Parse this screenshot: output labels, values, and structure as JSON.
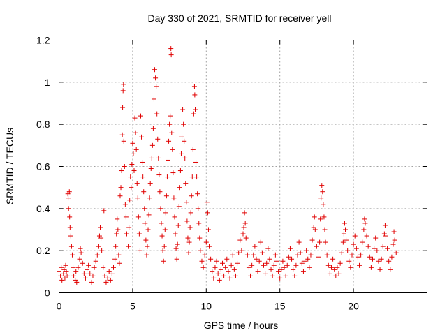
{
  "chart_data": {
    "type": "scatter",
    "title": "Day 330 of 2021, SRMTID for receiver yell",
    "xlabel": "GPS time / hours",
    "ylabel": "SRMTID / TECUs",
    "xlim": [
      0,
      25
    ],
    "ylim": [
      0,
      1.2
    ],
    "xticks": [
      0,
      5,
      10,
      15,
      20
    ],
    "xtick_labels": [
      "0",
      "5",
      "10",
      "15",
      "20"
    ],
    "yticks": [
      0,
      0.2,
      0.4,
      0.6,
      0.8,
      1.0,
      1.2
    ],
    "ytick_labels": [
      "0",
      "0.2",
      "0.4",
      "0.6",
      "0.8",
      "1",
      "1.2"
    ],
    "grid": true,
    "marker": "+",
    "color": "#e00000",
    "series": [
      {
        "name": "SRMTID",
        "points": [
          [
            0.0,
            0.1
          ],
          [
            0.1,
            0.08
          ],
          [
            0.15,
            0.12
          ],
          [
            0.2,
            0.06
          ],
          [
            0.3,
            0.09
          ],
          [
            0.35,
            0.11
          ],
          [
            0.4,
            0.07
          ],
          [
            0.45,
            0.13
          ],
          [
            0.5,
            0.1
          ],
          [
            0.55,
            0.08
          ],
          [
            0.6,
            0.47
          ],
          [
            0.62,
            0.45
          ],
          [
            0.65,
            0.4
          ],
          [
            0.7,
            0.48
          ],
          [
            0.72,
            0.36
          ],
          [
            0.75,
            0.31
          ],
          [
            0.8,
            0.27
          ],
          [
            0.85,
            0.22
          ],
          [
            0.9,
            0.18
          ],
          [
            0.95,
            0.12
          ],
          [
            1.0,
            0.08
          ],
          [
            1.1,
            0.06
          ],
          [
            1.15,
            0.1
          ],
          [
            1.2,
            0.05
          ],
          [
            1.3,
            0.12
          ],
          [
            1.4,
            0.16
          ],
          [
            1.45,
            0.21
          ],
          [
            1.5,
            0.19
          ],
          [
            1.6,
            0.14
          ],
          [
            1.7,
            0.09
          ],
          [
            1.8,
            0.07
          ],
          [
            1.9,
            0.11
          ],
          [
            2.0,
            0.13
          ],
          [
            2.1,
            0.09
          ],
          [
            2.2,
            0.05
          ],
          [
            2.3,
            0.08
          ],
          [
            2.4,
            0.12
          ],
          [
            2.5,
            0.15
          ],
          [
            2.6,
            0.18
          ],
          [
            2.7,
            0.22
          ],
          [
            2.75,
            0.27
          ],
          [
            2.8,
            0.31
          ],
          [
            2.85,
            0.26
          ],
          [
            2.9,
            0.2
          ],
          [
            3.0,
            0.12
          ],
          [
            3.05,
            0.39
          ],
          [
            3.1,
            0.08
          ],
          [
            3.2,
            0.05
          ],
          [
            3.3,
            0.07
          ],
          [
            3.4,
            0.1
          ],
          [
            3.5,
            0.06
          ],
          [
            3.6,
            0.09
          ],
          [
            3.7,
            0.12
          ],
          [
            3.8,
            0.16
          ],
          [
            3.85,
            0.22
          ],
          [
            3.9,
            0.28
          ],
          [
            3.95,
            0.35
          ],
          [
            4.0,
            0.3
          ],
          [
            4.05,
            0.18
          ],
          [
            4.1,
            0.14
          ],
          [
            4.15,
            0.46
          ],
          [
            4.2,
            0.5
          ],
          [
            4.25,
            0.58
          ],
          [
            4.3,
            0.75
          ],
          [
            4.32,
            0.88
          ],
          [
            4.35,
            0.96
          ],
          [
            4.38,
            0.99
          ],
          [
            4.4,
            0.72
          ],
          [
            4.45,
            0.6
          ],
          [
            4.5,
            0.42
          ],
          [
            4.55,
            0.36
          ],
          [
            4.6,
            0.28
          ],
          [
            4.7,
            0.22
          ],
          [
            4.75,
            0.31
          ],
          [
            4.8,
            0.44
          ],
          [
            4.85,
            0.55
          ],
          [
            4.9,
            0.5
          ],
          [
            4.95,
            0.61
          ],
          [
            5.0,
            0.71
          ],
          [
            5.05,
            0.66
          ],
          [
            5.1,
            0.58
          ],
          [
            5.15,
            0.83
          ],
          [
            5.2,
            0.76
          ],
          [
            5.25,
            0.68
          ],
          [
            5.3,
            0.52
          ],
          [
            5.35,
            0.45
          ],
          [
            5.4,
            0.36
          ],
          [
            5.45,
            0.28
          ],
          [
            5.5,
            0.2
          ],
          [
            5.55,
            0.84
          ],
          [
            5.6,
            0.74
          ],
          [
            5.65,
            0.62
          ],
          [
            5.7,
            0.55
          ],
          [
            5.75,
            0.48
          ],
          [
            5.8,
            0.4
          ],
          [
            5.85,
            0.33
          ],
          [
            5.9,
            0.25
          ],
          [
            5.95,
            0.18
          ],
          [
            6.0,
            0.22
          ],
          [
            6.05,
            0.3
          ],
          [
            6.1,
            0.37
          ],
          [
            6.15,
            0.45
          ],
          [
            6.2,
            0.52
          ],
          [
            6.25,
            0.59
          ],
          [
            6.3,
            0.64
          ],
          [
            6.35,
            0.7
          ],
          [
            6.4,
            0.78
          ],
          [
            6.45,
            0.92
          ],
          [
            6.5,
            1.06
          ],
          [
            6.55,
            1.02
          ],
          [
            6.6,
            0.98
          ],
          [
            6.65,
            0.85
          ],
          [
            6.7,
            0.73
          ],
          [
            6.75,
            0.64
          ],
          [
            6.8,
            0.56
          ],
          [
            6.85,
            0.48
          ],
          [
            6.9,
            0.4
          ],
          [
            6.95,
            0.33
          ],
          [
            7.0,
            0.27
          ],
          [
            7.05,
            0.2
          ],
          [
            7.1,
            0.15
          ],
          [
            7.15,
            0.22
          ],
          [
            7.2,
            0.3
          ],
          [
            7.25,
            0.38
          ],
          [
            7.3,
            0.46
          ],
          [
            7.35,
            0.55
          ],
          [
            7.4,
            0.63
          ],
          [
            7.45,
            0.72
          ],
          [
            7.5,
            0.8
          ],
          [
            7.55,
            0.84
          ],
          [
            7.6,
            1.16
          ],
          [
            7.62,
            1.13
          ],
          [
            7.65,
            0.76
          ],
          [
            7.7,
            0.68
          ],
          [
            7.75,
            0.57
          ],
          [
            7.8,
            0.45
          ],
          [
            7.85,
            0.36
          ],
          [
            7.9,
            0.28
          ],
          [
            7.95,
            0.21
          ],
          [
            8.0,
            0.16
          ],
          [
            8.05,
            0.23
          ],
          [
            8.1,
            0.32
          ],
          [
            8.15,
            0.41
          ],
          [
            8.2,
            0.5
          ],
          [
            8.25,
            0.58
          ],
          [
            8.3,
            0.66
          ],
          [
            8.35,
            0.74
          ],
          [
            8.4,
            0.87
          ],
          [
            8.45,
            0.8
          ],
          [
            8.5,
            0.72
          ],
          [
            8.55,
            0.64
          ],
          [
            8.6,
            0.52
          ],
          [
            8.65,
            0.43
          ],
          [
            8.7,
            0.34
          ],
          [
            8.75,
            0.26
          ],
          [
            8.8,
            0.19
          ],
          [
            8.85,
            0.24
          ],
          [
            8.9,
            0.31
          ],
          [
            8.95,
            0.38
          ],
          [
            9.0,
            0.46
          ],
          [
            9.05,
            0.55
          ],
          [
            9.1,
            0.68
          ],
          [
            9.15,
            0.85
          ],
          [
            9.2,
            0.98
          ],
          [
            9.22,
            0.94
          ],
          [
            9.25,
            0.87
          ],
          [
            9.3,
            0.62
          ],
          [
            9.35,
            0.55
          ],
          [
            9.4,
            0.47
          ],
          [
            9.45,
            0.4
          ],
          [
            9.5,
            0.33
          ],
          [
            9.55,
            0.26
          ],
          [
            9.6,
            0.2
          ],
          [
            9.7,
            0.15
          ],
          [
            9.8,
            0.12
          ],
          [
            9.9,
            0.18
          ],
          [
            10.0,
            0.24
          ],
          [
            10.05,
            0.43
          ],
          [
            10.1,
            0.38
          ],
          [
            10.15,
            0.3
          ],
          [
            10.2,
            0.22
          ],
          [
            10.3,
            0.16
          ],
          [
            10.4,
            0.1
          ],
          [
            10.5,
            0.07
          ],
          [
            10.6,
            0.12
          ],
          [
            10.7,
            0.15
          ],
          [
            10.8,
            0.09
          ],
          [
            10.9,
            0.06
          ],
          [
            11.0,
            0.11
          ],
          [
            11.1,
            0.14
          ],
          [
            11.2,
            0.08
          ],
          [
            11.3,
            0.12
          ],
          [
            11.4,
            0.16
          ],
          [
            11.5,
            0.1
          ],
          [
            11.6,
            0.07
          ],
          [
            11.7,
            0.13
          ],
          [
            11.8,
            0.18
          ],
          [
            11.9,
            0.11
          ],
          [
            12.0,
            0.08
          ],
          [
            12.1,
            0.14
          ],
          [
            12.2,
            0.19
          ],
          [
            12.3,
            0.25
          ],
          [
            12.4,
            0.2
          ],
          [
            12.5,
            0.28
          ],
          [
            12.55,
            0.31
          ],
          [
            12.6,
            0.38
          ],
          [
            12.65,
            0.33
          ],
          [
            12.7,
            0.26
          ],
          [
            12.8,
            0.18
          ],
          [
            12.9,
            0.12
          ],
          [
            13.0,
            0.08
          ],
          [
            13.1,
            0.13
          ],
          [
            13.2,
            0.18
          ],
          [
            13.3,
            0.22
          ],
          [
            13.4,
            0.16
          ],
          [
            13.5,
            0.1
          ],
          [
            13.6,
            0.15
          ],
          [
            13.7,
            0.24
          ],
          [
            13.8,
            0.19
          ],
          [
            13.9,
            0.13
          ],
          [
            14.0,
            0.09
          ],
          [
            14.1,
            0.14
          ],
          [
            14.2,
            0.21
          ],
          [
            14.3,
            0.16
          ],
          [
            14.4,
            0.11
          ],
          [
            14.5,
            0.08
          ],
          [
            14.6,
            0.13
          ],
          [
            14.7,
            0.18
          ],
          [
            14.8,
            0.15
          ],
          [
            14.9,
            0.1
          ],
          [
            15.0,
            0.07
          ],
          [
            15.1,
            0.11
          ],
          [
            15.2,
            0.15
          ],
          [
            15.3,
            0.12
          ],
          [
            15.4,
            0.08
          ],
          [
            15.5,
            0.13
          ],
          [
            15.6,
            0.17
          ],
          [
            15.7,
            0.21
          ],
          [
            15.8,
            0.16
          ],
          [
            15.9,
            0.11
          ],
          [
            16.0,
            0.08
          ],
          [
            16.1,
            0.13
          ],
          [
            16.2,
            0.18
          ],
          [
            16.3,
            0.24
          ],
          [
            16.4,
            0.19
          ],
          [
            16.5,
            0.14
          ],
          [
            16.6,
            0.1
          ],
          [
            16.7,
            0.15
          ],
          [
            16.8,
            0.2
          ],
          [
            16.9,
            0.16
          ],
          [
            17.0,
            0.12
          ],
          [
            17.1,
            0.18
          ],
          [
            17.2,
            0.25
          ],
          [
            17.3,
            0.31
          ],
          [
            17.35,
            0.36
          ],
          [
            17.4,
            0.3
          ],
          [
            17.5,
            0.22
          ],
          [
            17.6,
            0.17
          ],
          [
            17.7,
            0.24
          ],
          [
            17.75,
            0.35
          ],
          [
            17.8,
            0.45
          ],
          [
            17.85,
            0.51
          ],
          [
            17.9,
            0.48
          ],
          [
            17.95,
            0.42
          ],
          [
            18.0,
            0.36
          ],
          [
            18.05,
            0.3
          ],
          [
            18.1,
            0.24
          ],
          [
            18.2,
            0.18
          ],
          [
            18.3,
            0.13
          ],
          [
            18.4,
            0.09
          ],
          [
            18.5,
            0.12
          ],
          [
            18.6,
            0.16
          ],
          [
            18.7,
            0.11
          ],
          [
            18.8,
            0.08
          ],
          [
            18.9,
            0.12
          ],
          [
            19.0,
            0.09
          ],
          [
            19.1,
            0.14
          ],
          [
            19.2,
            0.19
          ],
          [
            19.3,
            0.24
          ],
          [
            19.35,
            0.28
          ],
          [
            19.4,
            0.33
          ],
          [
            19.45,
            0.3
          ],
          [
            19.5,
            0.25
          ],
          [
            19.6,
            0.2
          ],
          [
            19.7,
            0.15
          ],
          [
            19.8,
            0.12
          ],
          [
            19.9,
            0.18
          ],
          [
            20.0,
            0.23
          ],
          [
            20.1,
            0.27
          ],
          [
            20.2,
            0.21
          ],
          [
            20.3,
            0.17
          ],
          [
            20.4,
            0.13
          ],
          [
            20.5,
            0.18
          ],
          [
            20.6,
            0.24
          ],
          [
            20.7,
            0.3
          ],
          [
            20.75,
            0.35
          ],
          [
            20.8,
            0.33
          ],
          [
            20.9,
            0.27
          ],
          [
            21.0,
            0.22
          ],
          [
            21.1,
            0.17
          ],
          [
            21.2,
            0.12
          ],
          [
            21.3,
            0.16
          ],
          [
            21.4,
            0.21
          ],
          [
            21.5,
            0.26
          ],
          [
            21.6,
            0.2
          ],
          [
            21.7,
            0.15
          ],
          [
            21.8,
            0.11
          ],
          [
            21.9,
            0.16
          ],
          [
            22.0,
            0.22
          ],
          [
            22.1,
            0.28
          ],
          [
            22.15,
            0.32
          ],
          [
            22.2,
            0.27
          ],
          [
            22.3,
            0.21
          ],
          [
            22.4,
            0.15
          ],
          [
            22.5,
            0.11
          ],
          [
            22.6,
            0.17
          ],
          [
            22.7,
            0.23
          ],
          [
            22.75,
            0.29
          ],
          [
            22.8,
            0.25
          ],
          [
            22.9,
            0.19
          ]
        ]
      }
    ]
  }
}
